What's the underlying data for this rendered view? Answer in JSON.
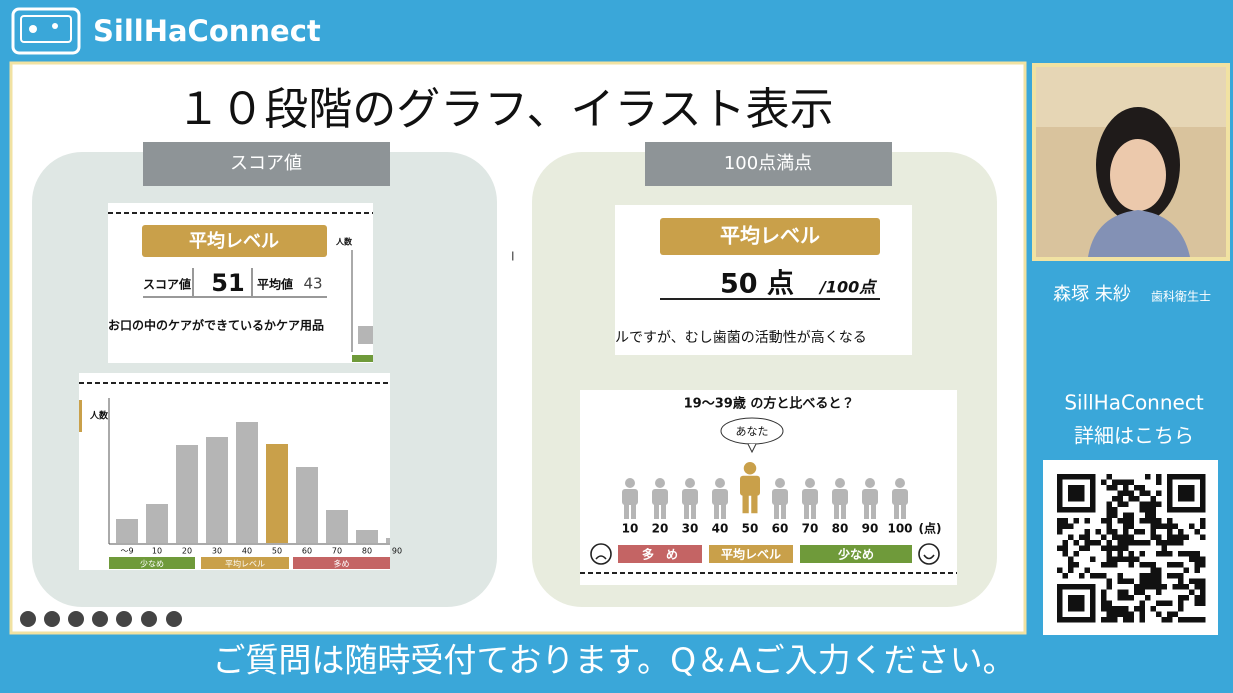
{
  "header": {
    "logo_text": "SillHaConnect"
  },
  "slide": {
    "title": "１０段階のグラフ、イラスト表示",
    "left_panel": {
      "tab": "スコア値",
      "card": {
        "badge": "平均レベル",
        "score_label": "スコア値",
        "score": "51",
        "avg_label": "平均値",
        "avg": "43",
        "axis_label": "人数",
        "note": "お口の中のケアができているかケア用品"
      },
      "histogram": {
        "axis_label": "人数",
        "categories": [
          "〜9",
          "10",
          "20",
          "30",
          "40",
          "50",
          "60",
          "70",
          "80",
          "90"
        ],
        "values": [
          24,
          39,
          98,
          106,
          121,
          99,
          76,
          33,
          13,
          5
        ],
        "colors": [
          "#b5b5b5",
          "#b5b5b5",
          "#b5b5b5",
          "#b5b5b5",
          "#b5b5b5",
          "#c9a04a",
          "#b5b5b5",
          "#b5b5b5",
          "#b5b5b5",
          "#b5b5b5"
        ],
        "bands": [
          {
            "label": "少なめ",
            "color": "#6f9a3a"
          },
          {
            "label": "平均レベル",
            "color": "#c9a04a"
          },
          {
            "label": "多め",
            "color": "#c46464"
          }
        ]
      }
    },
    "right_panel": {
      "tab": "100点満点",
      "card": {
        "badge": "平均レベル",
        "score": "50 点",
        "unit": "/100点",
        "note": "ルですが、むし歯菌の活動性が高くなる"
      },
      "comparison": {
        "title": "19〜39歳 の方と比べると？",
        "bubble": "あなた",
        "scores": [
          "10",
          "20",
          "30",
          "40",
          "50",
          "60",
          "70",
          "80",
          "90",
          "100"
        ],
        "unit": "(点)",
        "bands": [
          {
            "label": "多　め",
            "color": "#c46464"
          },
          {
            "label": "平均レベル",
            "color": "#c9a04a"
          },
          {
            "label": "少なめ",
            "color": "#6f9a3a"
          }
        ]
      }
    }
  },
  "speaker": {
    "name": "森塚 未紗",
    "role": "歯科衛生士"
  },
  "promo": {
    "line1": "SillHaConnect",
    "line2": "詳細はこちら"
  },
  "caption": "ご質問は随時受付ております。Q＆Aご入力ください。"
}
